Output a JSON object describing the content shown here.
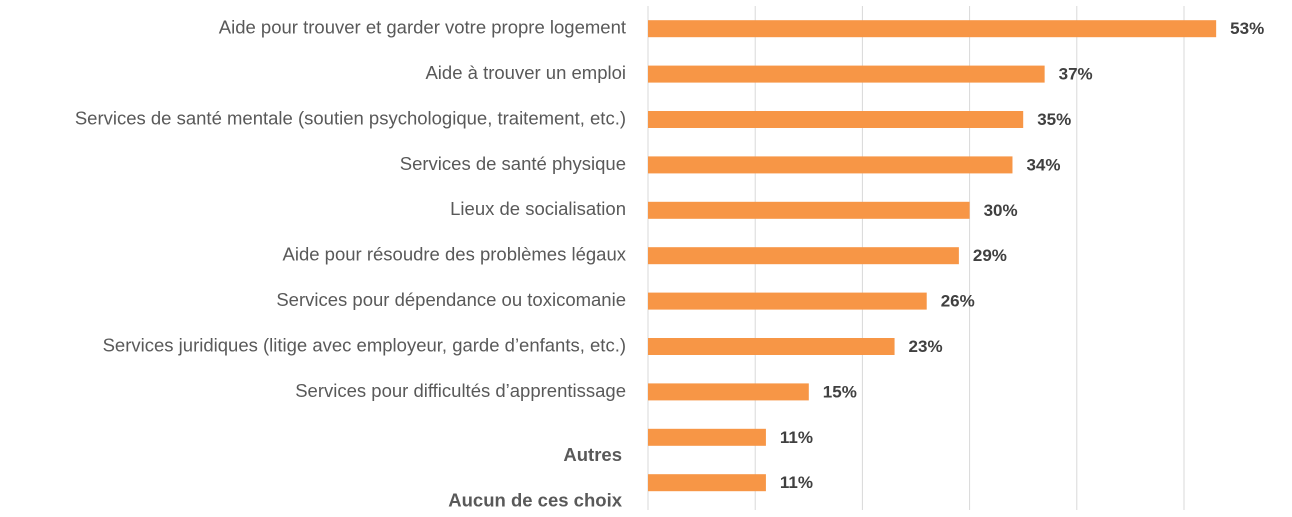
{
  "chart_data": {
    "type": "barh",
    "categories": [
      "Aide pour trouver et garder votre propre logement",
      "Aide à trouver un emploi",
      "Services de santé mentale (soutien psychologique, traitement, etc.)",
      "Services de santé physique",
      "Lieux de socialisation",
      "Aide pour résoudre des problèmes légaux",
      "Services pour dépendance ou toxicomanie",
      "Services juridiques (litige avec employeur, garde d’enfants, etc.)",
      "Services pour difficultés d’apprentissage",
      "Autres",
      "Aucun de ces choix"
    ],
    "values": [
      53,
      37,
      35,
      34,
      30,
      29,
      26,
      23,
      15,
      11,
      11
    ],
    "value_labels": [
      "53%",
      "37%",
      "35%",
      "34%",
      "30%",
      "29%",
      "26%",
      "23%",
      "15%",
      "11%",
      "11%"
    ],
    "color": "#f79646",
    "xlim": [
      0,
      60
    ],
    "xticks": [
      0,
      10,
      20,
      30,
      40,
      50
    ],
    "grid": true
  }
}
